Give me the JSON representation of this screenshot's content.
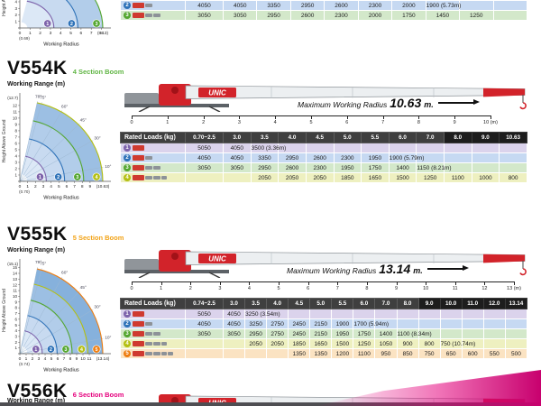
{
  "labels": {
    "working_range": "Working Range (m)",
    "working_radius": "Working Radius",
    "height_above_ground": "Height Above Ground",
    "rated_loads": "Rated Loads (kg)",
    "max_radius_prefix": "Maximum Working Radius",
    "max_radius_unit": "m.",
    "meters_suffix": "(m)",
    "brand": "UNIC"
  },
  "row_styles": [
    {
      "num": "1",
      "bg": "#dbd3ec",
      "accent": "#7d63ab"
    },
    {
      "num": "2",
      "bg": "#c6d9f2",
      "accent": "#2e72b8"
    },
    {
      "num": "3",
      "bg": "#d3e8ca",
      "accent": "#53a62f"
    },
    {
      "num": "4",
      "bg": "#eef0c0",
      "accent": "#b4bf12"
    },
    {
      "num": "5",
      "bg": "#fbe3c2",
      "accent": "#ee7d10"
    }
  ],
  "top_partial": {
    "table": {
      "col_count": 10,
      "rows": [
        {
          "style": 1,
          "cells": [
            "4050",
            "4050",
            "3350",
            "2950",
            "2600",
            "2300",
            "2000",
            "1900 (5.73m)",
            "",
            ""
          ]
        },
        {
          "style": 2,
          "cells": [
            "3050",
            "3050",
            "2950",
            "2600",
            "2300",
            "2000",
            "1750",
            "1450",
            "1250",
            ""
          ]
        }
      ]
    },
    "diagram": {
      "h_ann": "",
      "h_max": 10,
      "h_reach": 10.2,
      "angles": [],
      "axis_ticks": [
        "0",
        "1",
        "2",
        "3",
        "4",
        "5",
        "6",
        "7",
        "8"
      ],
      "axis_max_label": "(8.13)",
      "axis_max_val": 8.13,
      "min_radius": "(0.69)",
      "fractions": [
        0.41,
        0.7,
        1.0
      ]
    }
  },
  "sections": [
    {
      "model": "V554K",
      "boom_label": "4 Section Boom",
      "boom_color": "#62b646",
      "max_radius_value": "10.63",
      "ruler_ticks": [
        "0",
        "1",
        "2",
        "3",
        "4",
        "5",
        "6",
        "7",
        "8",
        "9",
        "10"
      ],
      "diagram": {
        "h_ann": "(12.7)",
        "h_max": 12,
        "h_reach": 12.7,
        "angles": [
          "78°",
          "75°",
          "60°",
          "45°",
          "30°",
          "10°"
        ],
        "axis_ticks": [
          "0",
          "1",
          "2",
          "3",
          "4",
          "5",
          "6",
          "7",
          "8",
          "9"
        ],
        "axis_max_label": "(10.63)",
        "axis_max_val": 10.63,
        "min_radius": "(0.70)",
        "fractions": [
          0.32,
          0.54,
          0.77,
          1.0
        ]
      },
      "table": {
        "columns": [
          "0.70~2.5",
          "3.0",
          "3.5",
          "4.0",
          "4.5",
          "5.0",
          "5.5",
          "6.0",
          "7.0",
          "8.0",
          "9.0",
          "10.63"
        ],
        "dark_from": 9,
        "rows": [
          {
            "style": 0,
            "cells": [
              "5050",
              "4050",
              "3500 (3.36m)",
              "",
              "",
              "",
              "",
              "",
              "",
              "",
              "",
              ""
            ]
          },
          {
            "style": 1,
            "cells": [
              "4050",
              "4050",
              "3350",
              "2950",
              "2600",
              "2300",
              "1950",
              "1900 (5.79m)",
              "",
              "",
              "",
              ""
            ]
          },
          {
            "style": 2,
            "cells": [
              "3050",
              "3050",
              "2950",
              "2600",
              "2300",
              "1950",
              "1750",
              "1400",
              "1150 (8.21m)",
              "",
              "",
              ""
            ]
          },
          {
            "style": 3,
            "cells": [
              "",
              "",
              "2050",
              "2050",
              "2050",
              "1850",
              "1650",
              "1500",
              "1250",
              "1100",
              "1000",
              "800"
            ]
          }
        ]
      }
    },
    {
      "model": "V555K",
      "boom_label": "5 Section Boom",
      "boom_color": "#f2a317",
      "max_radius_value": "13.14",
      "ruler_ticks": [
        "0",
        "1",
        "2",
        "3",
        "4",
        "5",
        "6",
        "7",
        "8",
        "9",
        "10",
        "11",
        "12",
        "13"
      ],
      "diagram": {
        "h_ann": "(15.1)",
        "h_max": 15,
        "h_reach": 15.1,
        "angles": [
          "78°",
          "75°",
          "60°",
          "45°",
          "30°",
          "10°"
        ],
        "axis_ticks": [
          "0",
          "1",
          "2",
          "3",
          "4",
          "5",
          "6",
          "7",
          "8",
          "9",
          "10",
          "11"
        ],
        "axis_max_label": "(13.14)",
        "axis_max_val": 13.14,
        "min_radius": "(0.74)",
        "fractions": [
          0.27,
          0.45,
          0.63,
          0.82,
          1.0
        ]
      },
      "table": {
        "columns": [
          "0.74~2.5",
          "3.0",
          "3.5",
          "4.0",
          "4.5",
          "5.0",
          "5.5",
          "6.0",
          "7.0",
          "8.0",
          "9.0",
          "10.0",
          "11.0",
          "12.0",
          "13.14"
        ],
        "dark_from": 10,
        "rows": [
          {
            "style": 0,
            "cells": [
              "5050",
              "4050",
              "3250 (3.54m)",
              "",
              "",
              "",
              "",
              "",
              "",
              "",
              "",
              "",
              "",
              "",
              ""
            ]
          },
          {
            "style": 1,
            "cells": [
              "4050",
              "4050",
              "3250",
              "2750",
              "2450",
              "2150",
              "1900",
              "1700 (5.94m)",
              "",
              "",
              "",
              "",
              "",
              "",
              ""
            ]
          },
          {
            "style": 2,
            "cells": [
              "3050",
              "3050",
              "2950",
              "2750",
              "2450",
              "2150",
              "1950",
              "1750",
              "1400",
              "1100 (8.34m)",
              "",
              "",
              "",
              "",
              ""
            ]
          },
          {
            "style": 3,
            "cells": [
              "",
              "",
              "2050",
              "2050",
              "1850",
              "1650",
              "1500",
              "1250",
              "1050",
              "900",
              "800",
              "750 (10.74m)",
              "",
              "",
              ""
            ]
          },
          {
            "style": 4,
            "cells": [
              "",
              "",
              "",
              "",
              "1350",
              "1350",
              "1200",
              "1100",
              "950",
              "850",
              "750",
              "650",
              "600",
              "550",
              "500"
            ]
          }
        ]
      }
    },
    {
      "model": "V556K",
      "boom_label": "6 Section Boom",
      "boom_color": "#e5007d"
    }
  ]
}
